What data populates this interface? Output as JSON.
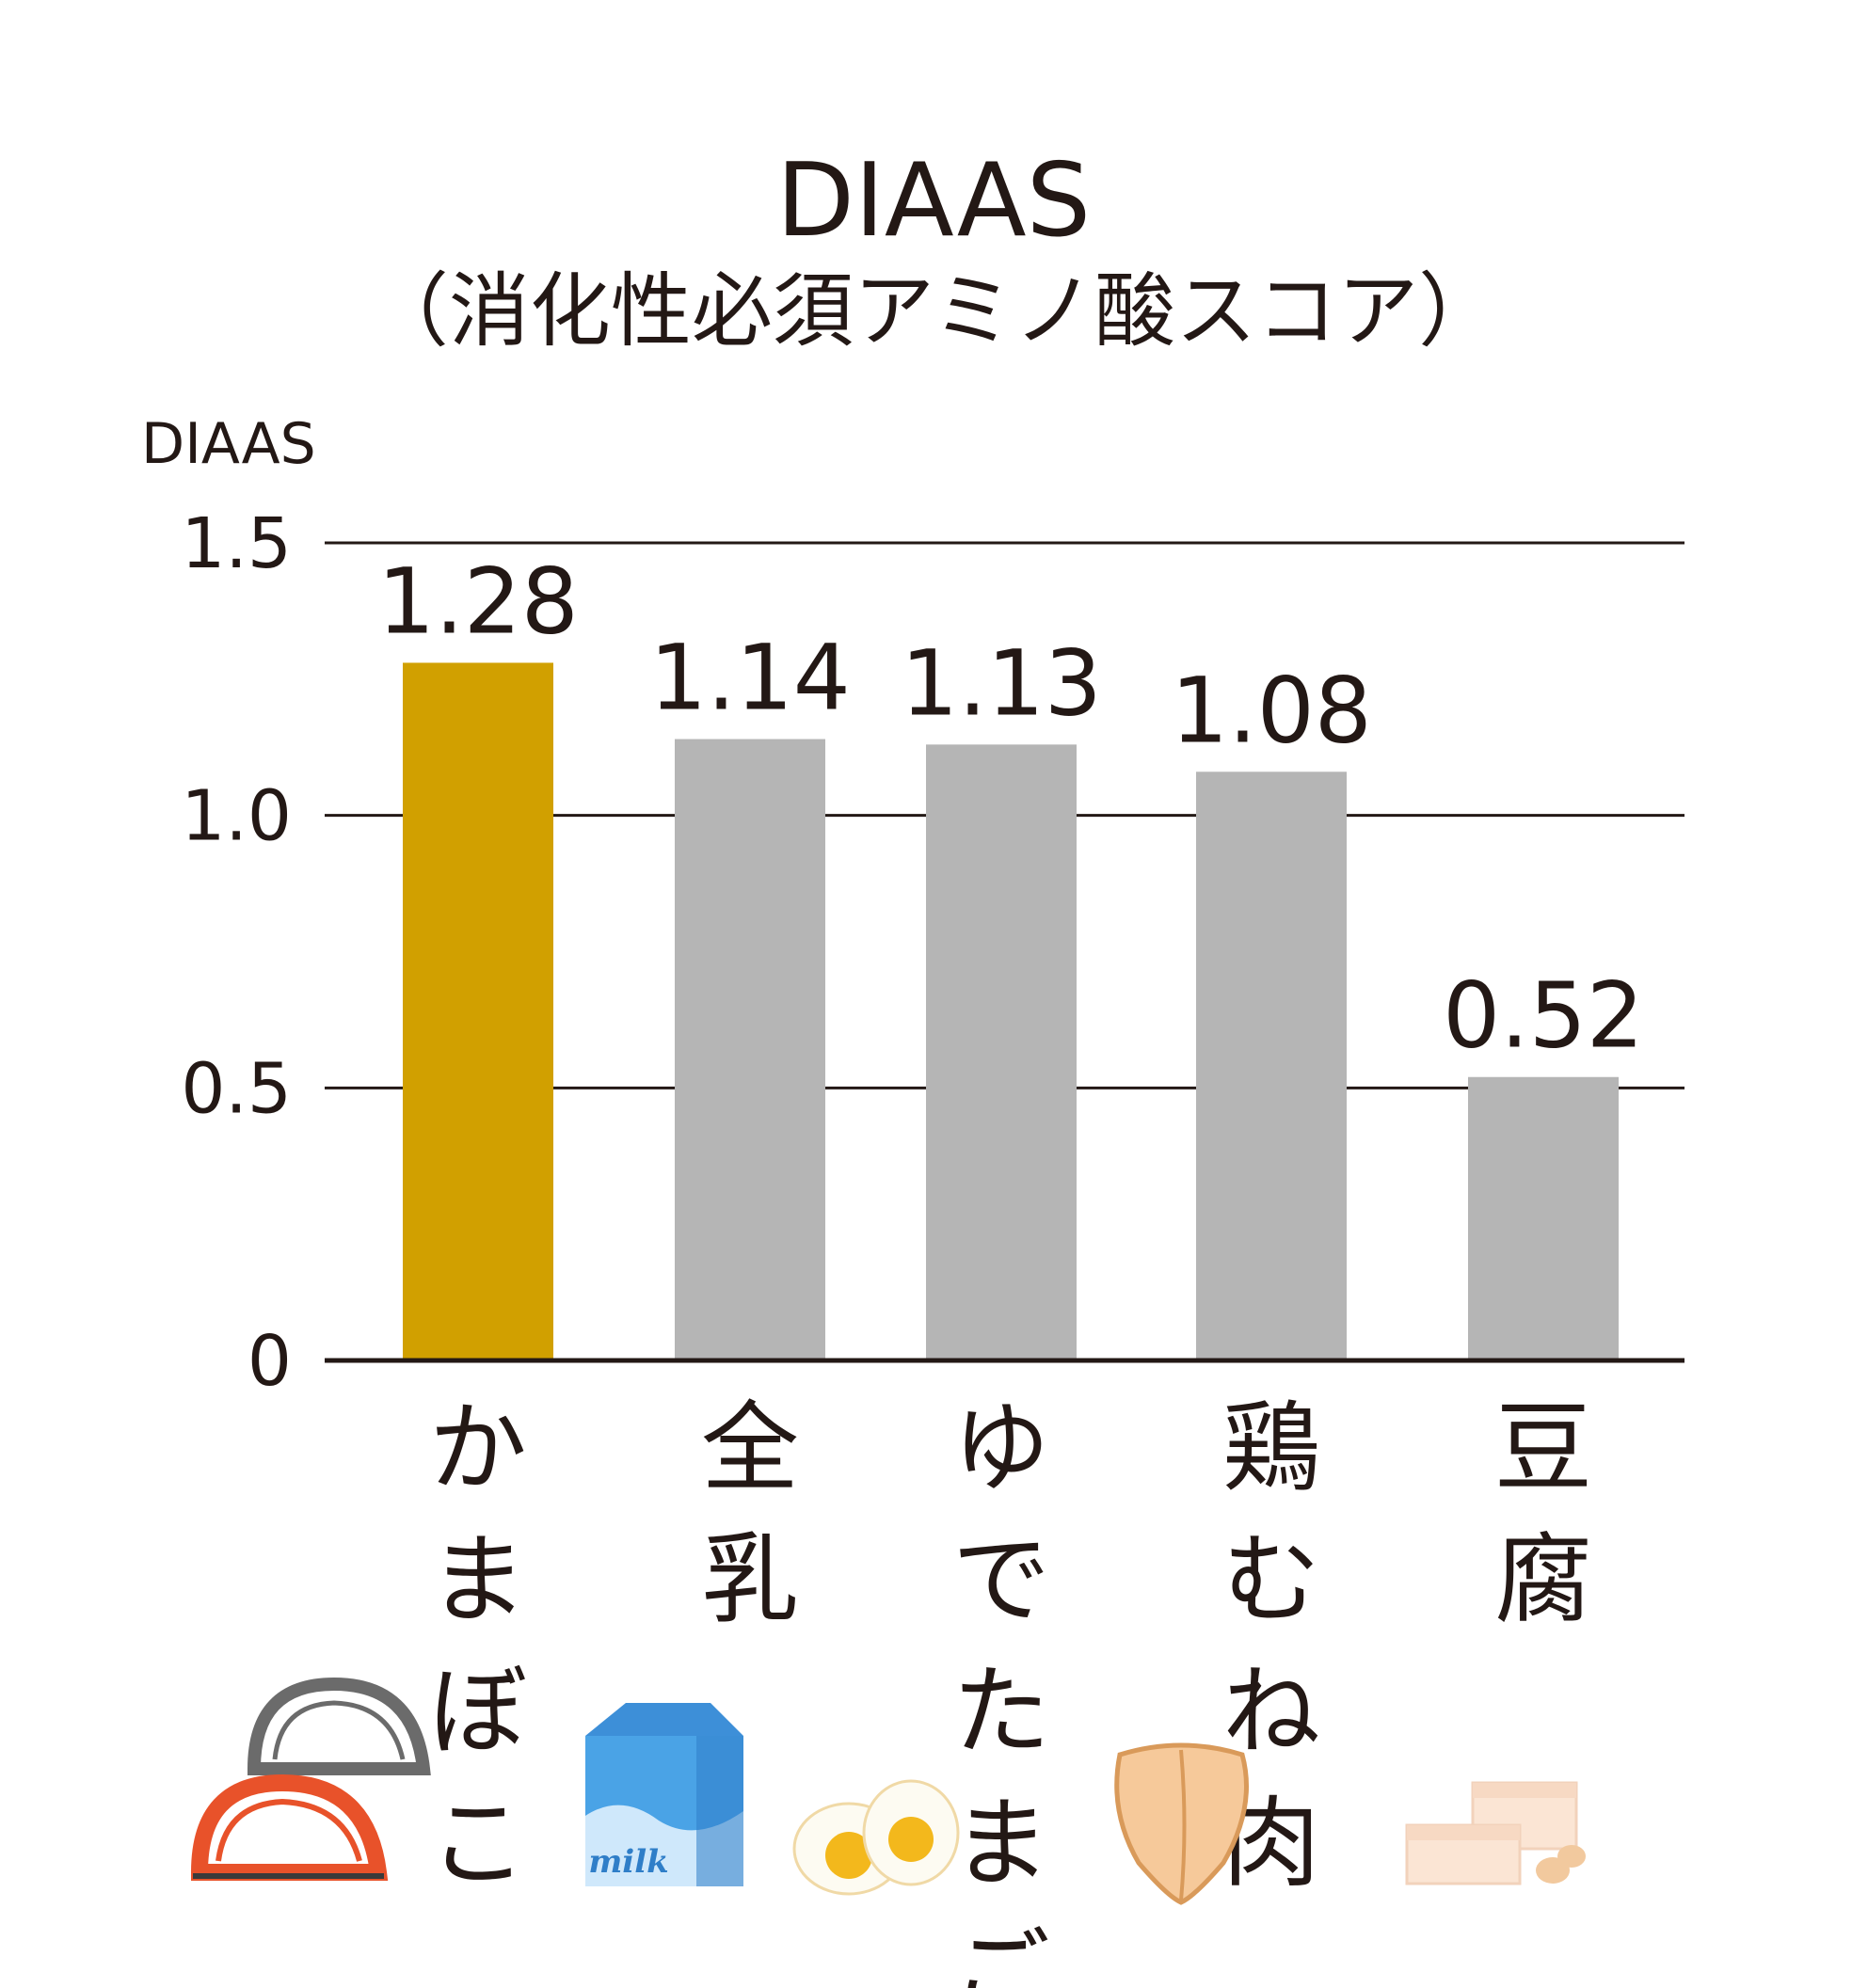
{
  "chart_data": {
    "type": "bar",
    "title": "DIAAS",
    "subtitle": "（消化性必須アミノ酸スコア）",
    "ylabel": "DIAAS",
    "ylim": [
      0,
      1.5
    ],
    "yticks": [
      0,
      0.5,
      1.0,
      1.5
    ],
    "ytick_labels": [
      "0",
      "0.5",
      "1.0",
      "1.5"
    ],
    "grid": true,
    "categories": [
      "かまぼこ",
      "全乳",
      "ゆでたまご",
      "鶏むね肉",
      "豆腐"
    ],
    "values": [
      1.28,
      1.14,
      1.13,
      1.08,
      0.52
    ],
    "value_labels": [
      "1.28",
      "1.14",
      "1.13",
      "1.08",
      "0.52"
    ],
    "colors": [
      "#d1a000",
      "#b5b5b5",
      "#b5b5b5",
      "#b5b5b5",
      "#b5b5b5"
    ],
    "icons": [
      "kamaboko-icon",
      "milk-carton-icon",
      "boiled-egg-icon",
      "chicken-breast-icon",
      "tofu-icon"
    ],
    "milk_carton_text": "milk"
  }
}
